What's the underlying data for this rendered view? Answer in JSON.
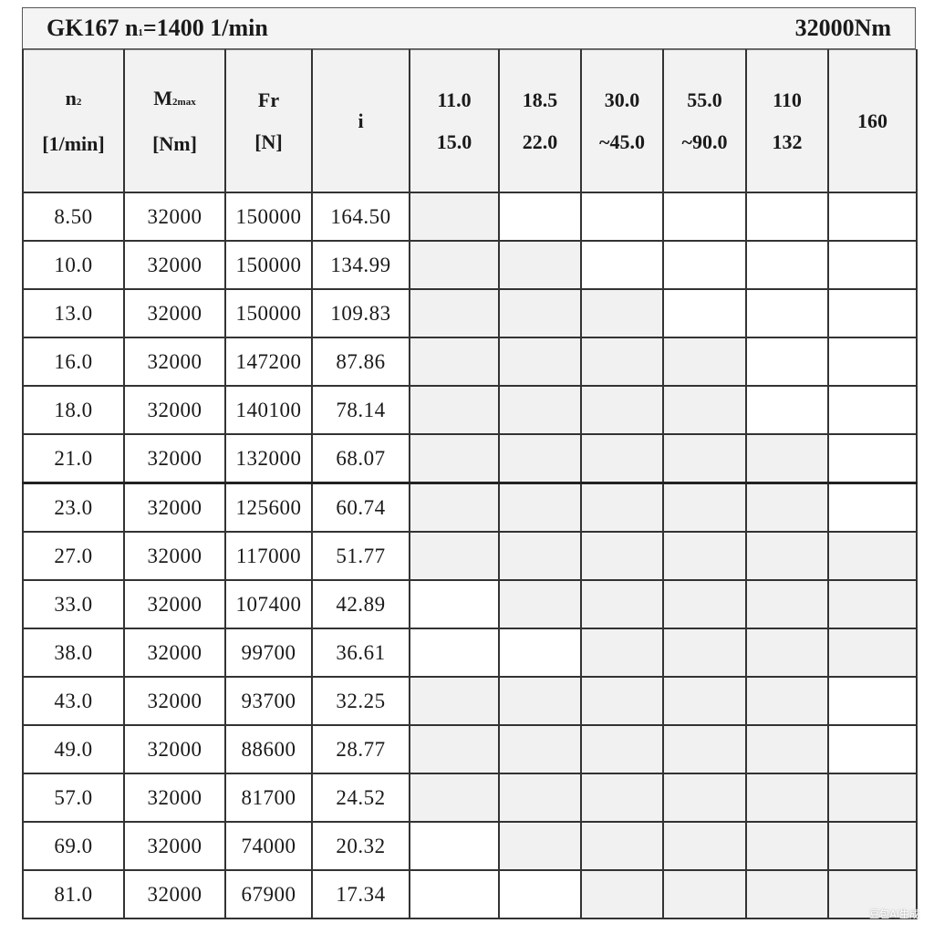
{
  "title": {
    "model": "GK167",
    "n1_label": "n",
    "n1_sub": "1",
    "n1_value": "=1400 1/min",
    "torque": "32000Nm"
  },
  "headers": [
    {
      "l1": "n",
      "sub": "2",
      "l2": "[1/min]"
    },
    {
      "l1": "M",
      "sub": "2max",
      "l2": "[Nm]"
    },
    {
      "l1": "Fr",
      "sub": "",
      "l2": "[N]"
    },
    {
      "l1": "i",
      "sub": "",
      "l2": ""
    },
    {
      "l1": "11.0",
      "sub": "",
      "l2": "15.0"
    },
    {
      "l1": "18.5",
      "sub": "",
      "l2": "22.0"
    },
    {
      "l1": "30.0",
      "sub": "",
      "l2": "~45.0"
    },
    {
      "l1": "55.0",
      "sub": "",
      "l2": "~90.0"
    },
    {
      "l1": "110",
      "sub": "",
      "l2": "132"
    },
    {
      "l1": "160",
      "sub": "",
      "l2": ""
    }
  ],
  "rows": [
    {
      "n2": "8.50",
      "m2max": "32000",
      "fr": "150000",
      "i": "164.50",
      "avail": [
        1,
        0,
        0,
        0,
        0,
        0
      ]
    },
    {
      "n2": "10.0",
      "m2max": "32000",
      "fr": "150000",
      "i": "134.99",
      "avail": [
        1,
        1,
        0,
        0,
        0,
        0
      ]
    },
    {
      "n2": "13.0",
      "m2max": "32000",
      "fr": "150000",
      "i": "109.83",
      "avail": [
        1,
        1,
        1,
        0,
        0,
        0
      ]
    },
    {
      "n2": "16.0",
      "m2max": "32000",
      "fr": "147200",
      "i": "87.86",
      "avail": [
        1,
        1,
        1,
        1,
        0,
        0
      ]
    },
    {
      "n2": "18.0",
      "m2max": "32000",
      "fr": "140100",
      "i": "78.14",
      "avail": [
        1,
        1,
        1,
        1,
        0,
        0
      ]
    },
    {
      "n2": "21.0",
      "m2max": "32000",
      "fr": "132000",
      "i": "68.07",
      "avail": [
        1,
        1,
        1,
        1,
        1,
        0
      ]
    },
    {
      "n2": "23.0",
      "m2max": "32000",
      "fr": "125600",
      "i": "60.74",
      "avail": [
        1,
        1,
        1,
        1,
        1,
        0
      ]
    },
    {
      "n2": "27.0",
      "m2max": "32000",
      "fr": "117000",
      "i": "51.77",
      "avail": [
        1,
        1,
        1,
        1,
        1,
        1
      ]
    },
    {
      "n2": "33.0",
      "m2max": "32000",
      "fr": "107400",
      "i": "42.89",
      "avail": [
        0,
        1,
        1,
        1,
        1,
        1
      ]
    },
    {
      "n2": "38.0",
      "m2max": "32000",
      "fr": "99700",
      "i": "36.61",
      "avail": [
        0,
        0,
        1,
        1,
        1,
        1
      ]
    },
    {
      "n2": "43.0",
      "m2max": "32000",
      "fr": "93700",
      "i": "32.25",
      "avail": [
        1,
        1,
        1,
        1,
        1,
        0
      ]
    },
    {
      "n2": "49.0",
      "m2max": "32000",
      "fr": "88600",
      "i": "28.77",
      "avail": [
        1,
        1,
        1,
        1,
        1,
        0
      ]
    },
    {
      "n2": "57.0",
      "m2max": "32000",
      "fr": "81700",
      "i": "24.52",
      "avail": [
        1,
        1,
        1,
        1,
        1,
        1
      ]
    },
    {
      "n2": "69.0",
      "m2max": "32000",
      "fr": "74000",
      "i": "20.32",
      "avail": [
        0,
        1,
        1,
        1,
        1,
        1
      ]
    },
    {
      "n2": "81.0",
      "m2max": "32000",
      "fr": "67900",
      "i": "17.34",
      "avail": [
        0,
        0,
        1,
        1,
        1,
        1
      ]
    }
  ],
  "colors": {
    "shaded_cell": "#f1f1f1",
    "blank_cell": "#ffffff",
    "grid": "#333333"
  },
  "watermark": "豆包AI生成"
}
